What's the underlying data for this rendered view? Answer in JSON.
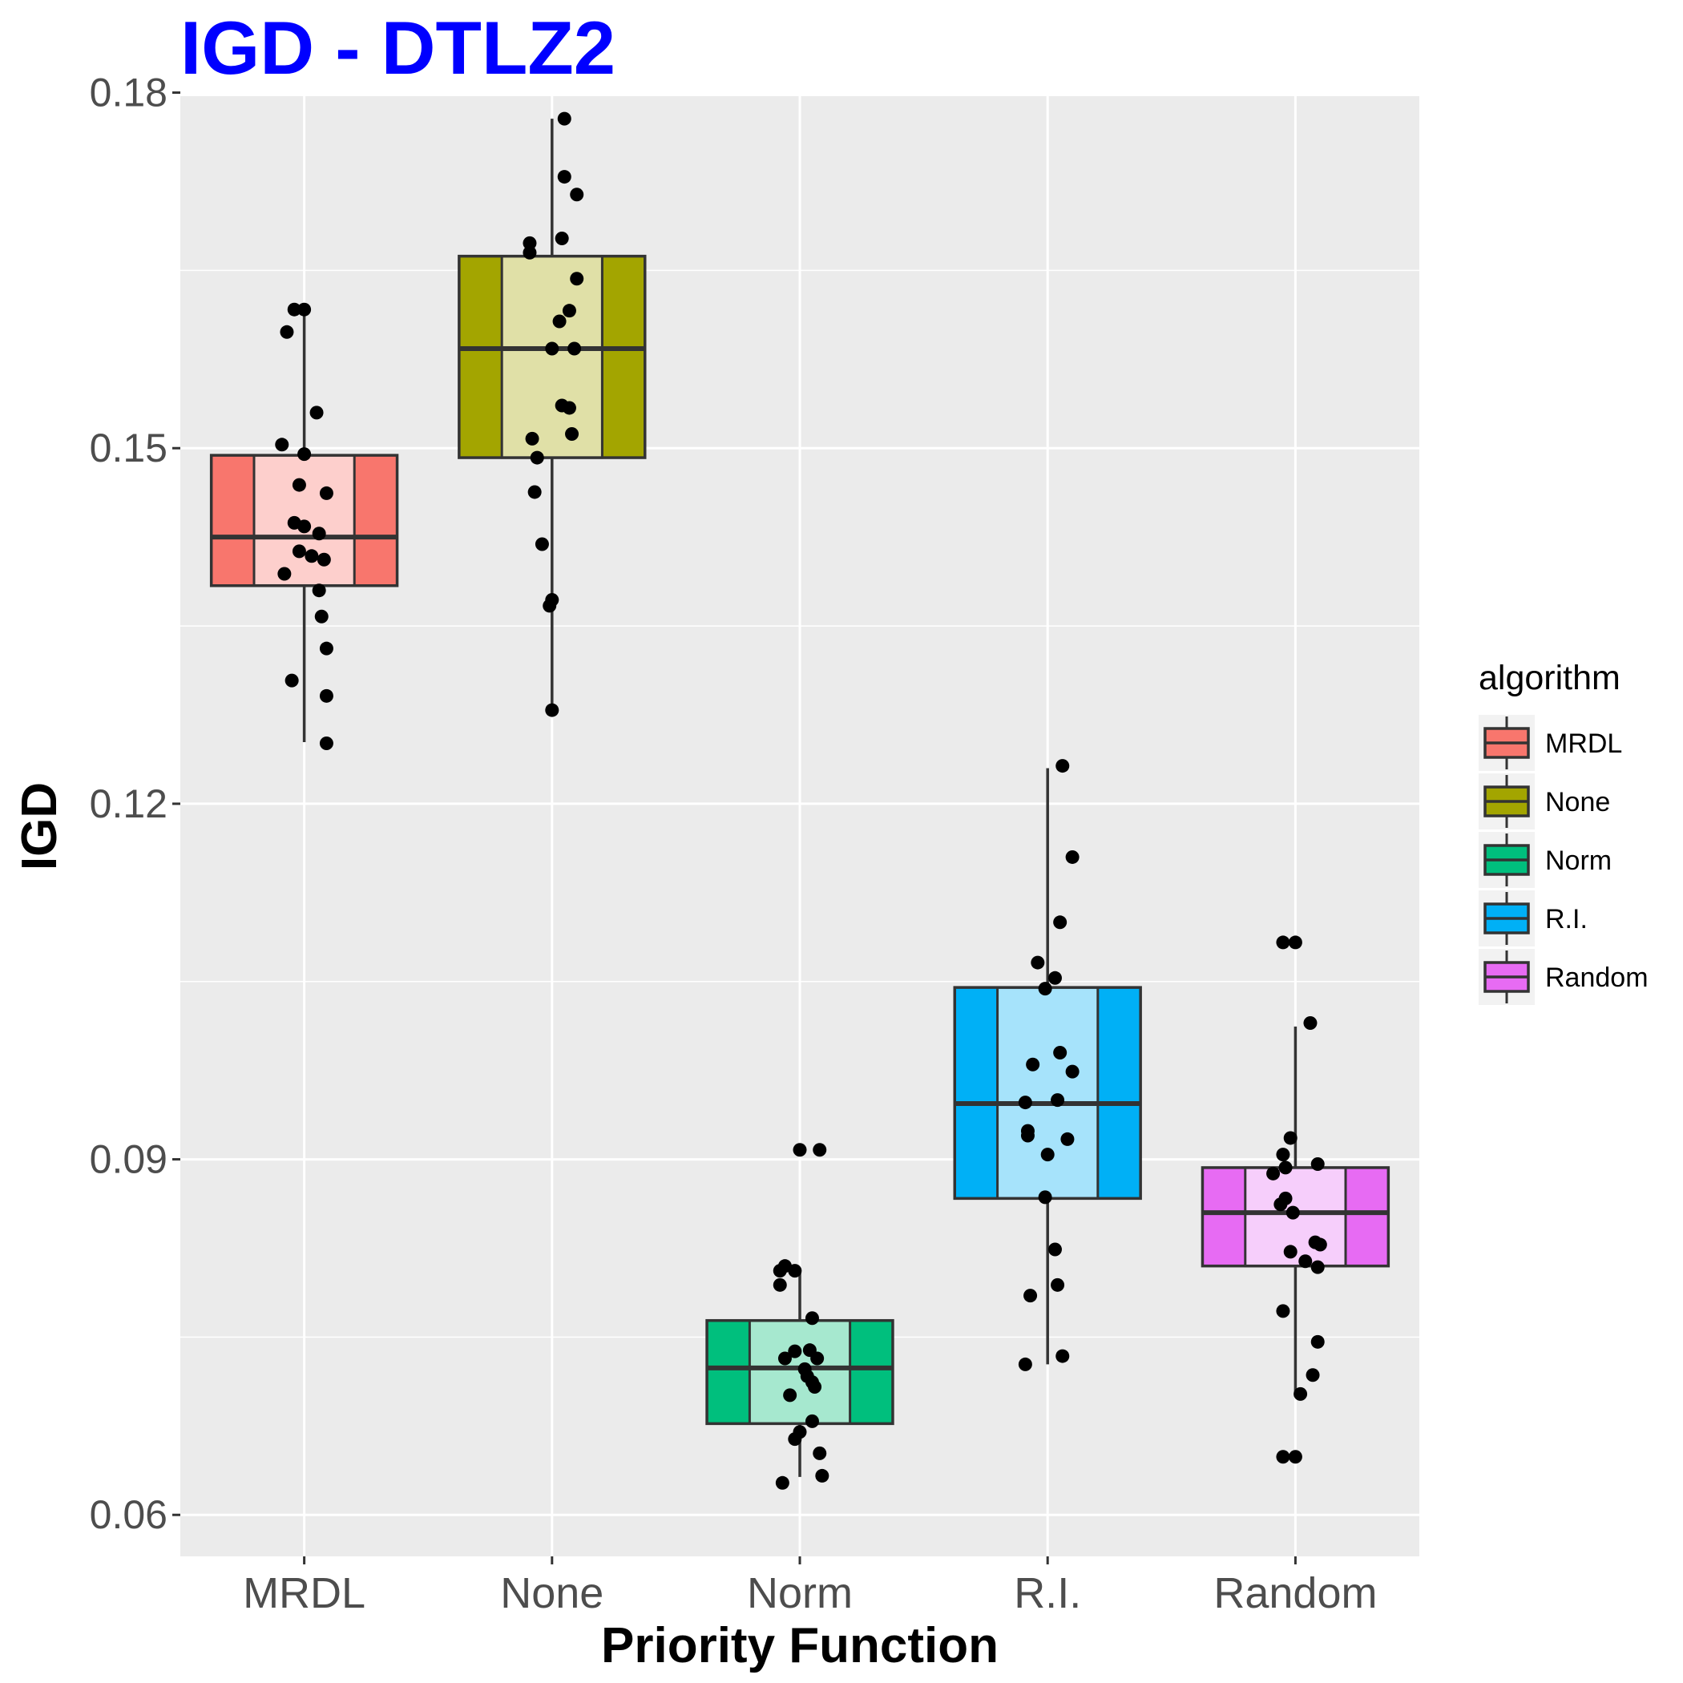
{
  "chart_data": {
    "type": "boxplot",
    "title": "IGD - DTLZ2",
    "xlabel": "Priority Function",
    "ylabel": "IGD",
    "ylim": [
      0.0565,
      0.1797
    ],
    "yticks": [
      0.06,
      0.09,
      0.12,
      0.15,
      0.18
    ],
    "ytick_labels": [
      "0.06",
      "0.09",
      "0.12",
      "0.15",
      "0.18"
    ],
    "categories": [
      "MRDL",
      "None",
      "Norm",
      "R.I.",
      "Random"
    ],
    "grid": true,
    "title_color": "#0000ff",
    "panel_color": "#ebebeb",
    "legend": {
      "title": "algorithm",
      "position": "right",
      "items": [
        {
          "label": "MRDL",
          "color": "#f8766d"
        },
        {
          "label": "None",
          "color": "#a3a500"
        },
        {
          "label": "Norm",
          "color": "#00bf7d"
        },
        {
          "label": "R.I.",
          "color": "#00b0f6"
        },
        {
          "label": "Random",
          "color": "#e76bf3"
        }
      ]
    },
    "series": [
      {
        "category": "MRDL",
        "color": "#f8766d",
        "light_color": "#fdcfcc",
        "whisker_low": 0.1252,
        "q1": 0.1384,
        "median": 0.1425,
        "q3": 0.1494,
        "whisker_high": 0.1617,
        "points": [
          {
            "x": -0.04,
            "y": 0.1617
          },
          {
            "x": 0.0,
            "y": 0.1617
          },
          {
            "x": -0.07,
            "y": 0.1598
          },
          {
            "x": 0.05,
            "y": 0.153
          },
          {
            "x": -0.09,
            "y": 0.1503
          },
          {
            "x": 0.0,
            "y": 0.1495
          },
          {
            "x": -0.02,
            "y": 0.1469
          },
          {
            "x": 0.09,
            "y": 0.1462
          },
          {
            "x": -0.04,
            "y": 0.1437
          },
          {
            "x": 0.0,
            "y": 0.1434
          },
          {
            "x": 0.06,
            "y": 0.1428
          },
          {
            "x": -0.02,
            "y": 0.1413
          },
          {
            "x": 0.03,
            "y": 0.1409
          },
          {
            "x": 0.08,
            "y": 0.1406
          },
          {
            "x": -0.08,
            "y": 0.1394
          },
          {
            "x": 0.06,
            "y": 0.138
          },
          {
            "x": 0.07,
            "y": 0.1358
          },
          {
            "x": 0.09,
            "y": 0.1331
          },
          {
            "x": -0.05,
            "y": 0.1304
          },
          {
            "x": 0.09,
            "y": 0.1291
          },
          {
            "x": 0.09,
            "y": 0.1251
          }
        ]
      },
      {
        "category": "None",
        "color": "#a3a500",
        "light_color": "#e0e0a7",
        "whisker_low": 0.1279,
        "q1": 0.1492,
        "median": 0.1584,
        "q3": 0.1662,
        "whisker_high": 0.1778,
        "points": [
          {
            "x": 0.05,
            "y": 0.1778
          },
          {
            "x": 0.05,
            "y": 0.1729
          },
          {
            "x": 0.1,
            "y": 0.1714
          },
          {
            "x": 0.04,
            "y": 0.1677
          },
          {
            "x": -0.09,
            "y": 0.1673
          },
          {
            "x": -0.09,
            "y": 0.1665
          },
          {
            "x": 0.1,
            "y": 0.1643
          },
          {
            "x": 0.07,
            "y": 0.1616
          },
          {
            "x": 0.03,
            "y": 0.1607
          },
          {
            "x": 0.0,
            "y": 0.1584
          },
          {
            "x": 0.09,
            "y": 0.1584
          },
          {
            "x": 0.04,
            "y": 0.1536
          },
          {
            "x": 0.07,
            "y": 0.1534
          },
          {
            "x": 0.08,
            "y": 0.1512
          },
          {
            "x": -0.08,
            "y": 0.1508
          },
          {
            "x": -0.06,
            "y": 0.1492
          },
          {
            "x": -0.07,
            "y": 0.1463
          },
          {
            "x": -0.04,
            "y": 0.1419
          },
          {
            "x": 0.0,
            "y": 0.1372
          },
          {
            "x": -0.01,
            "y": 0.1367
          },
          {
            "x": 0.0,
            "y": 0.1279
          }
        ]
      },
      {
        "category": "Norm",
        "color": "#00bf7d",
        "light_color": "#a6e8cf",
        "whisker_low": 0.0632,
        "q1": 0.0677,
        "median": 0.0724,
        "q3": 0.0764,
        "whisker_high": 0.0808,
        "points": [
          {
            "x": 0.0,
            "y": 0.0908
          },
          {
            "x": 0.08,
            "y": 0.0908
          },
          {
            "x": -0.06,
            "y": 0.081
          },
          {
            "x": -0.08,
            "y": 0.0806
          },
          {
            "x": -0.02,
            "y": 0.0806
          },
          {
            "x": -0.08,
            "y": 0.0794
          },
          {
            "x": 0.05,
            "y": 0.0766
          },
          {
            "x": -0.02,
            "y": 0.0738
          },
          {
            "x": 0.04,
            "y": 0.0739
          },
          {
            "x": -0.06,
            "y": 0.0732
          },
          {
            "x": 0.07,
            "y": 0.0732
          },
          {
            "x": 0.02,
            "y": 0.0723
          },
          {
            "x": 0.03,
            "y": 0.0717
          },
          {
            "x": 0.05,
            "y": 0.0712
          },
          {
            "x": 0.06,
            "y": 0.0708
          },
          {
            "x": -0.04,
            "y": 0.0701
          },
          {
            "x": 0.05,
            "y": 0.0679
          },
          {
            "x": 0.0,
            "y": 0.067
          },
          {
            "x": -0.02,
            "y": 0.0664
          },
          {
            "x": 0.08,
            "y": 0.0652
          },
          {
            "x": -0.07,
            "y": 0.0627
          },
          {
            "x": 0.09,
            "y": 0.0633
          }
        ]
      },
      {
        "category": "R.I.",
        "color": "#00b0f6",
        "light_color": "#a6e3fb",
        "whisker_low": 0.0727,
        "q1": 0.0867,
        "median": 0.0947,
        "q3": 0.1045,
        "whisker_high": 0.123,
        "points": [
          {
            "x": 0.06,
            "y": 0.1232
          },
          {
            "x": 0.1,
            "y": 0.1155
          },
          {
            "x": 0.05,
            "y": 0.11
          },
          {
            "x": -0.04,
            "y": 0.1066
          },
          {
            "x": 0.03,
            "y": 0.1053
          },
          {
            "x": -0.01,
            "y": 0.1044
          },
          {
            "x": 0.05,
            "y": 0.099
          },
          {
            "x": -0.06,
            "y": 0.098
          },
          {
            "x": 0.1,
            "y": 0.0974
          },
          {
            "x": 0.04,
            "y": 0.095
          },
          {
            "x": -0.09,
            "y": 0.0948
          },
          {
            "x": -0.08,
            "y": 0.0924
          },
          {
            "x": -0.08,
            "y": 0.092
          },
          {
            "x": 0.08,
            "y": 0.0917
          },
          {
            "x": 0.0,
            "y": 0.0904
          },
          {
            "x": -0.01,
            "y": 0.0868
          },
          {
            "x": 0.03,
            "y": 0.0824
          },
          {
            "x": 0.04,
            "y": 0.0794
          },
          {
            "x": -0.07,
            "y": 0.0785
          },
          {
            "x": 0.06,
            "y": 0.0734
          },
          {
            "x": -0.09,
            "y": 0.0727
          }
        ]
      },
      {
        "category": "Random",
        "color": "#e76bf3",
        "light_color": "#f6cefb",
        "whisker_low": 0.07,
        "q1": 0.081,
        "median": 0.0855,
        "q3": 0.0893,
        "whisker_high": 0.1012,
        "points": [
          {
            "x": -0.05,
            "y": 0.1083
          },
          {
            "x": 0.0,
            "y": 0.1083
          },
          {
            "x": 0.06,
            "y": 0.1015
          },
          {
            "x": -0.02,
            "y": 0.0918
          },
          {
            "x": -0.05,
            "y": 0.0904
          },
          {
            "x": 0.09,
            "y": 0.0896
          },
          {
            "x": -0.04,
            "y": 0.0893
          },
          {
            "x": -0.09,
            "y": 0.0888
          },
          {
            "x": -0.04,
            "y": 0.0867
          },
          {
            "x": -0.06,
            "y": 0.0862
          },
          {
            "x": -0.01,
            "y": 0.0855
          },
          {
            "x": 0.08,
            "y": 0.083
          },
          {
            "x": 0.1,
            "y": 0.0828
          },
          {
            "x": -0.02,
            "y": 0.0822
          },
          {
            "x": 0.04,
            "y": 0.0814
          },
          {
            "x": 0.09,
            "y": 0.0809
          },
          {
            "x": -0.05,
            "y": 0.0772
          },
          {
            "x": 0.09,
            "y": 0.0746
          },
          {
            "x": 0.07,
            "y": 0.0718
          },
          {
            "x": 0.02,
            "y": 0.0702
          },
          {
            "x": -0.05,
            "y": 0.0649
          },
          {
            "x": 0.0,
            "y": 0.0649
          }
        ]
      }
    ]
  }
}
